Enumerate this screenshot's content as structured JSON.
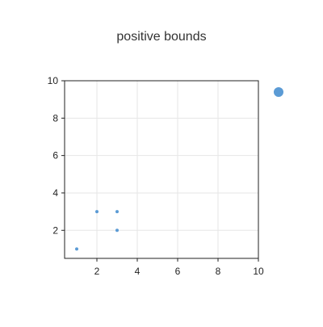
{
  "chart_data": {
    "type": "scatter",
    "title": "positive bounds",
    "xlabel": "",
    "ylabel": "",
    "xlim": [
      0.4,
      10
    ],
    "ylim": [
      0.5,
      10
    ],
    "x_ticks": [
      2,
      4,
      6,
      8,
      10
    ],
    "y_ticks": [
      2,
      4,
      6,
      8,
      10
    ],
    "grid": true,
    "series": [
      {
        "points": [
          {
            "x": 1,
            "y": 1
          },
          {
            "x": 2,
            "y": 3
          },
          {
            "x": 3,
            "y": 3
          },
          {
            "x": 3,
            "y": 2
          }
        ]
      }
    ],
    "legend": {
      "position": "right",
      "marker": "circle"
    }
  },
  "colors": {
    "marker": "#5b9bd5",
    "frame": "#222222",
    "grid": "#e6e6e6"
  }
}
